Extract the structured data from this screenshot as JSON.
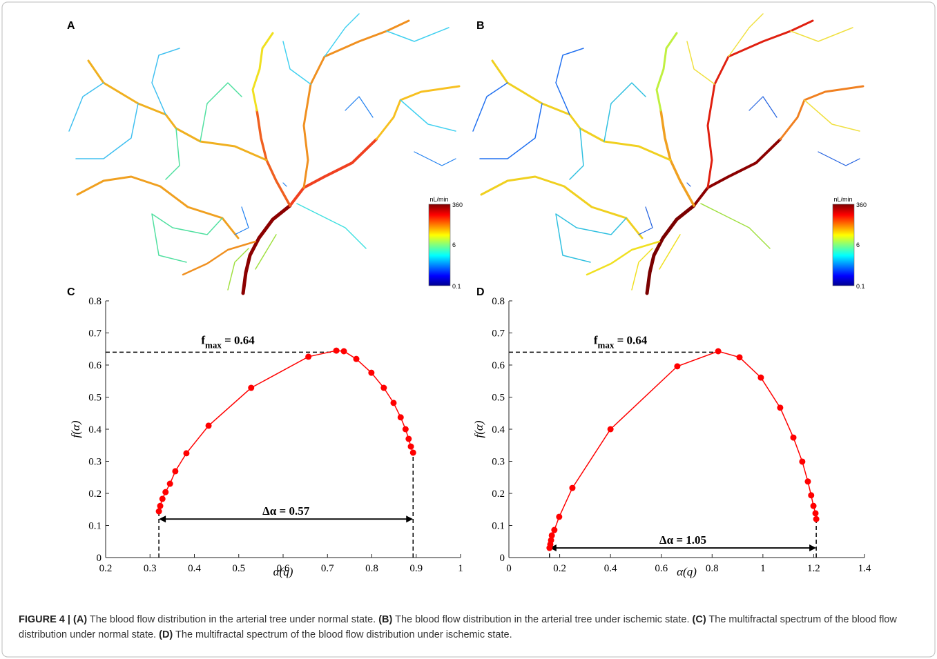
{
  "panels": [
    {
      "label": "A",
      "colorbar": {
        "unit": "nL/min",
        "ticks": [
          "360",
          "6",
          "0.1"
        ]
      }
    },
    {
      "label": "B",
      "colorbar": {
        "unit": "nL/min",
        "ticks": [
          "360",
          "6",
          "0.1"
        ]
      }
    }
  ],
  "chart_data": [
    {
      "type": "line",
      "panel": "C",
      "color": "#ff0000",
      "xlabel": "α(q)",
      "ylabel": "f(α)",
      "x": [
        0.32,
        0.323,
        0.328,
        0.335,
        0.345,
        0.357,
        0.382,
        0.432,
        0.528,
        0.657,
        0.72,
        0.737,
        0.765,
        0.799,
        0.827,
        0.849,
        0.865,
        0.876,
        0.883,
        0.888,
        0.893
      ],
      "values": [
        0.144,
        0.161,
        0.183,
        0.204,
        0.23,
        0.269,
        0.325,
        0.411,
        0.529,
        0.626,
        0.645,
        0.643,
        0.619,
        0.576,
        0.529,
        0.482,
        0.437,
        0.4,
        0.37,
        0.346,
        0.327
      ],
      "xlim": [
        0.2,
        1
      ],
      "xticks": [
        0.2,
        0.3,
        0.4,
        0.5,
        0.6,
        0.7,
        0.8,
        0.9,
        1
      ],
      "ylim": [
        0,
        0.8
      ],
      "yticks": [
        0,
        0.1,
        0.2,
        0.3,
        0.4,
        0.5,
        0.6,
        0.7,
        0.8
      ],
      "fmax": 0.64,
      "fmax_label": {
        "text": "f",
        "sub": "max",
        "suffix": " = 0.64"
      },
      "arrow_y": 0.12,
      "delta_label": "Δα = 0.57"
    },
    {
      "type": "line",
      "panel": "D",
      "color": "#ff0000",
      "xlabel": "α(q)",
      "ylabel": "f(α)",
      "x": [
        0.16,
        0.163,
        0.166,
        0.169,
        0.179,
        0.198,
        0.25,
        0.4,
        0.663,
        0.824,
        0.908,
        0.992,
        1.068,
        1.12,
        1.155,
        1.177,
        1.19,
        1.199,
        1.207,
        1.21
      ],
      "values": [
        0.03,
        0.041,
        0.054,
        0.069,
        0.086,
        0.127,
        0.217,
        0.4,
        0.596,
        0.643,
        0.624,
        0.561,
        0.467,
        0.374,
        0.299,
        0.237,
        0.194,
        0.161,
        0.138,
        0.12
      ],
      "xlim": [
        0,
        1.4
      ],
      "xticks": [
        0,
        0.2,
        0.4,
        0.6,
        0.8,
        1,
        1.2,
        1.4
      ],
      "ylim": [
        0,
        0.8
      ],
      "yticks": [
        0,
        0.1,
        0.2,
        0.3,
        0.4,
        0.5,
        0.6,
        0.7,
        0.8
      ],
      "fmax": 0.64,
      "fmax_label": {
        "text": "f",
        "sub": "max",
        "suffix": " = 0.64"
      },
      "arrow_y": 0.03,
      "delta_label": "Δα = 1.05"
    }
  ],
  "caption": {
    "label": "FIGURE 4 |",
    "parts": [
      {
        "label": "(A)",
        "text": " The blood flow distribution in the arterial tree under normal state. "
      },
      {
        "label": "(B)",
        "text": " The blood flow distribution in the arterial tree under ischemic state. "
      },
      {
        "label": "(C)",
        "text": " The multifractal spectrum of the blood flow distribution under normal state. "
      },
      {
        "label": "(D)",
        "text": " The multifractal spectrum of the blood flow distribution under ischemic state."
      }
    ]
  }
}
